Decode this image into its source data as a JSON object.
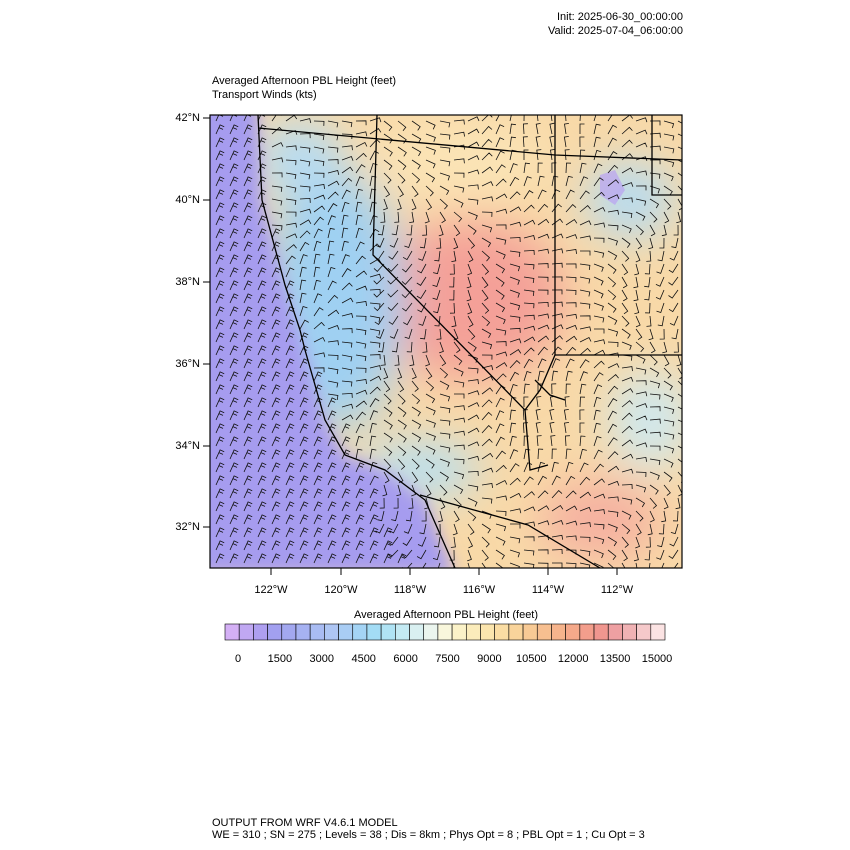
{
  "header": {
    "init": "Init: 2025-06-30_00:00:00",
    "valid": "Valid: 2025-07-04_06:00:00"
  },
  "map": {
    "title": "Averaged Afternoon PBL Height   (feet)",
    "subtitle": "Transport Winds   (kts)",
    "lat_labels": [
      "42°N",
      "40°N",
      "38°N",
      "36°N",
      "34°N",
      "32°N"
    ],
    "lon_labels": [
      "122°W",
      "120°W",
      "118°W",
      "116°W",
      "114°W",
      "112°W"
    ]
  },
  "colorbar": {
    "title": "Averaged Afternoon PBL Height  (feet)",
    "ticks": [
      0,
      1500,
      3000,
      4500,
      6000,
      7500,
      9000,
      10500,
      12000,
      13500,
      15000
    ],
    "colors": [
      "#d4b0f5",
      "#c0a8f2",
      "#ae9ff0",
      "#a2a0f0",
      "#a3a8f0",
      "#a6b2f2",
      "#a9bcf3",
      "#aec6f4",
      "#a9cdf4",
      "#a4d4f5",
      "#a3dcf5",
      "#b0e3f4",
      "#c4eaf3",
      "#d9f0f1",
      "#ebf5ee",
      "#f9f7dc",
      "#fbf2c8",
      "#fbecbb",
      "#fbe5ae",
      "#fadda4",
      "#f9d49b",
      "#f8ca95",
      "#f7bf90",
      "#f6b48c",
      "#f5a98a",
      "#f39e8c",
      "#f0968f",
      "#eea0a2",
      "#f0b2b4",
      "#f5c9ca",
      "#fbe3e3"
    ]
  },
  "footer": {
    "line1": "OUTPUT FROM WRF V4.6.1 MODEL",
    "line2": "WE = 310 ; SN = 275 ; Levels = 38 ; Dis = 8km ; Phys Opt = 8 ; PBL Opt = 1 ; Cu Opt = 3"
  }
}
